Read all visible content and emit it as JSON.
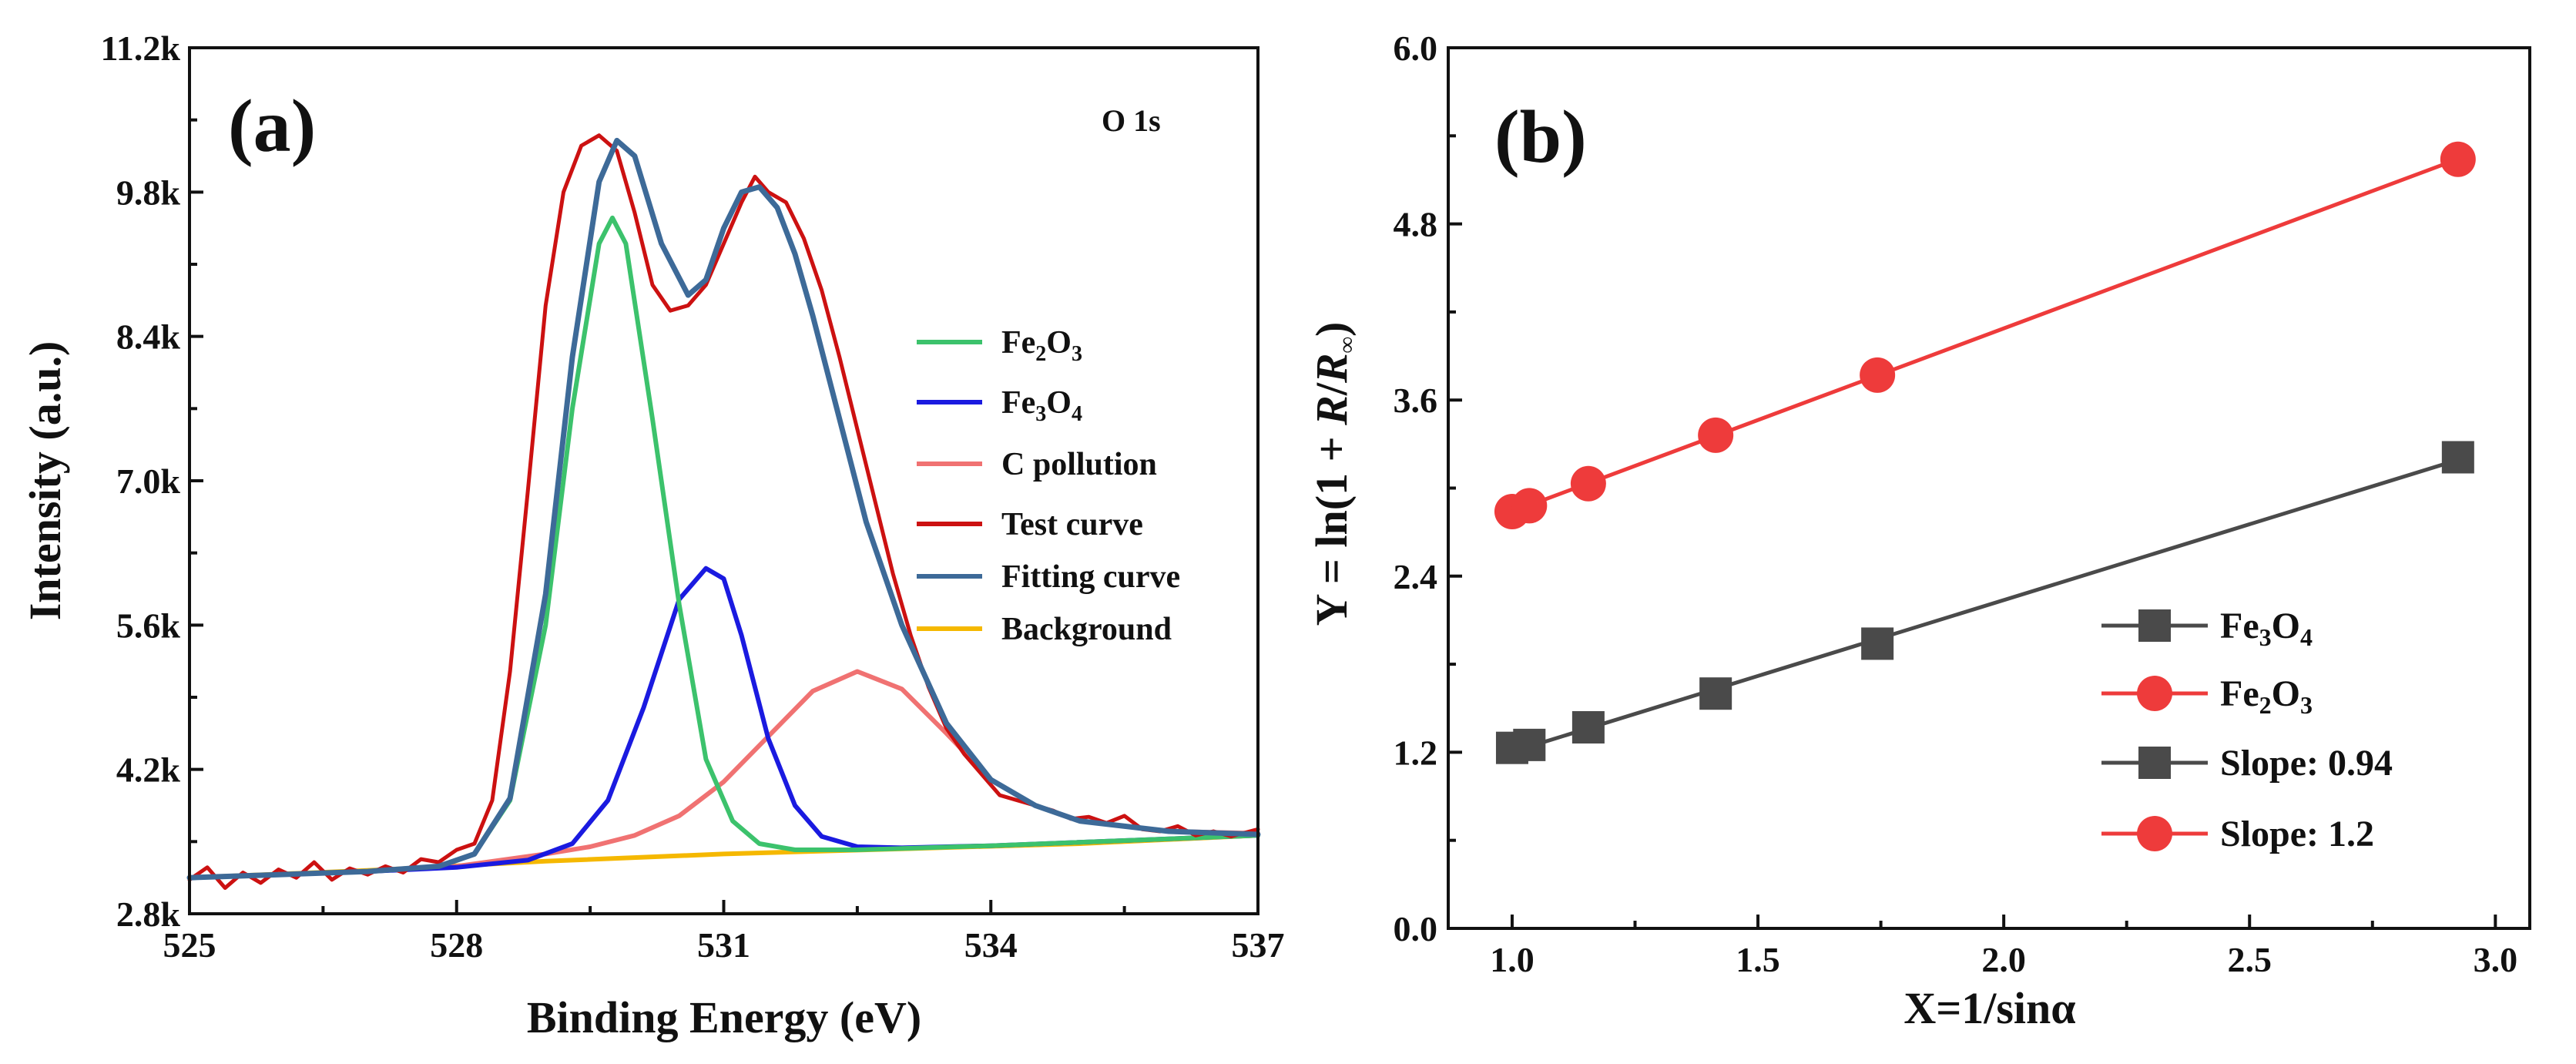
{
  "chart_data": [
    {
      "panel": "(a)",
      "type": "line",
      "title": "",
      "annotation": "O 1s",
      "xlabel": "Binding Energy (eV)",
      "ylabel": "Intensity (a.u.)",
      "xlim": [
        525,
        537
      ],
      "ylim": [
        2800,
        11200
      ],
      "xticks": [
        525,
        528,
        531,
        534,
        537
      ],
      "xtick_labels": [
        "525",
        "528",
        "531",
        "534",
        "537"
      ],
      "yticks": [
        2800,
        4200,
        5600,
        7000,
        8400,
        9800,
        11200
      ],
      "ytick_labels": [
        "2.8k",
        "4.2k",
        "5.6k",
        "7.0k",
        "8.4k",
        "9.8k",
        "11.2k"
      ],
      "legend_position": "center-right",
      "series": [
        {
          "name": "Fe2O3",
          "label_base": "Fe",
          "label_sub1": "2",
          "label_mid": "O",
          "label_sub2": "3",
          "color": "#3cc26c",
          "x": [
            525.0,
            526.0,
            527.0,
            527.8,
            528.2,
            528.6,
            529.0,
            529.3,
            529.6,
            529.75,
            529.9,
            530.2,
            530.5,
            530.8,
            531.1,
            531.4,
            531.8,
            532.5,
            534.0,
            537.0
          ],
          "y": [
            3150,
            3180,
            3210,
            3260,
            3380,
            3900,
            5600,
            7700,
            9300,
            9550,
            9300,
            7600,
            5800,
            4300,
            3700,
            3480,
            3420,
            3420,
            3460,
            3560
          ]
        },
        {
          "name": "Fe3O4",
          "label_base": "Fe",
          "label_sub1": "3",
          "label_mid": "O",
          "label_sub2": "4",
          "color": "#1a1ae0",
          "x": [
            525.0,
            526.0,
            527.0,
            528.0,
            528.8,
            529.3,
            529.7,
            530.1,
            530.5,
            530.8,
            531.0,
            531.2,
            531.5,
            531.8,
            532.1,
            532.5,
            533.0,
            534.0,
            537.0
          ],
          "y": [
            3150,
            3180,
            3210,
            3250,
            3320,
            3480,
            3900,
            4800,
            5850,
            6150,
            6050,
            5500,
            4500,
            3850,
            3550,
            3450,
            3440,
            3460,
            3560
          ]
        },
        {
          "name": "C pollution",
          "color": "#f07272",
          "x": [
            525.0,
            526.0,
            527.0,
            528.0,
            529.0,
            529.5,
            530.0,
            530.5,
            531.0,
            531.5,
            532.0,
            532.5,
            533.0,
            533.5,
            534.0,
            534.5,
            535.0,
            536.0,
            537.0
          ],
          "y": [
            3150,
            3180,
            3210,
            3260,
            3380,
            3450,
            3560,
            3750,
            4080,
            4520,
            4960,
            5150,
            4980,
            4550,
            4100,
            3850,
            3700,
            3600,
            3580
          ]
        },
        {
          "name": "Test curve",
          "color": "#cc1111",
          "x": [
            525.0,
            525.2,
            525.4,
            525.6,
            525.8,
            526.0,
            526.2,
            526.4,
            526.6,
            526.8,
            527.0,
            527.2,
            527.4,
            527.6,
            527.8,
            528.0,
            528.2,
            528.4,
            528.6,
            528.8,
            529.0,
            529.2,
            529.4,
            529.6,
            529.8,
            530.0,
            530.2,
            530.4,
            530.6,
            530.8,
            531.0,
            531.2,
            531.35,
            531.5,
            531.7,
            531.9,
            532.1,
            532.3,
            532.5,
            532.7,
            532.9,
            533.1,
            533.3,
            533.5,
            533.7,
            533.9,
            534.1,
            534.3,
            534.5,
            534.7,
            534.9,
            535.1,
            535.3,
            535.5,
            535.7,
            535.9,
            536.1,
            536.3,
            536.5,
            536.7,
            537.0
          ],
          "y": [
            3130,
            3250,
            3050,
            3200,
            3100,
            3230,
            3150,
            3300,
            3130,
            3240,
            3180,
            3260,
            3200,
            3330,
            3300,
            3420,
            3480,
            3900,
            5150,
            6900,
            8700,
            9800,
            10250,
            10350,
            10200,
            9600,
            8900,
            8650,
            8700,
            8900,
            9300,
            9700,
            9950,
            9800,
            9700,
            9350,
            8850,
            8200,
            7500,
            6800,
            6100,
            5500,
            5000,
            4600,
            4350,
            4150,
            3950,
            3900,
            3850,
            3800,
            3720,
            3740,
            3680,
            3750,
            3620,
            3600,
            3650,
            3560,
            3600,
            3550,
            3620
          ]
        },
        {
          "name": "Fitting curve",
          "color": "#3d6a98",
          "x": [
            525.0,
            526.0,
            527.0,
            527.8,
            528.2,
            528.6,
            529.0,
            529.3,
            529.6,
            529.8,
            530.0,
            530.3,
            530.6,
            530.8,
            531.0,
            531.2,
            531.4,
            531.6,
            531.8,
            532.0,
            532.3,
            532.6,
            533.0,
            533.5,
            534.0,
            534.5,
            535.0,
            536.0,
            537.0
          ],
          "y": [
            3150,
            3180,
            3210,
            3260,
            3380,
            3920,
            5900,
            8200,
            9900,
            10300,
            10150,
            9300,
            8800,
            8950,
            9450,
            9800,
            9850,
            9650,
            9200,
            8600,
            7600,
            6600,
            5600,
            4650,
            4100,
            3850,
            3700,
            3600,
            3570
          ]
        },
        {
          "name": "Background",
          "color": "#f5b800",
          "x": [
            525.0,
            527.0,
            529.0,
            531.0,
            533.0,
            535.0,
            537.0
          ],
          "y": [
            3150,
            3220,
            3310,
            3380,
            3430,
            3480,
            3560
          ]
        }
      ]
    },
    {
      "panel": "(b)",
      "type": "scatter",
      "title": "",
      "xlabel": "X=1/sinα",
      "ylabel_prefix": "Y = ln(1 + ",
      "ylabel_r": "R",
      "ylabel_slash": "/",
      "ylabel_rinf": "R",
      "ylabel_sub": "∞",
      "ylabel_suffix": ")",
      "xlim": [
        0.87,
        3.07
      ],
      "ylim": [
        0.0,
        6.0
      ],
      "xticks": [
        1.0,
        1.5,
        2.0,
        2.5,
        3.0
      ],
      "xtick_labels": [
        "1.0",
        "1.5",
        "2.0",
        "2.5",
        "3.0"
      ],
      "yticks": [
        0.0,
        1.2,
        2.4,
        3.6,
        4.8,
        6.0
      ],
      "ytick_labels": [
        "0.0",
        "1.2",
        "2.4",
        "3.6",
        "4.8",
        "6.0"
      ],
      "legend_position": "bottom-right",
      "legend": [
        {
          "label": "Fe3O4",
          "base": "Fe",
          "sub1": "3",
          "mid": "O",
          "sub2": "4",
          "marker": "square",
          "color": "#4a4a4a"
        },
        {
          "label": "Fe2O3",
          "base": "Fe",
          "sub1": "2",
          "mid": "O",
          "sub2": "3",
          "marker": "circle",
          "color": "#ee3b3b"
        },
        {
          "label": "Slope: 0.94",
          "marker": "square",
          "color": "#4a4a4a"
        },
        {
          "label": "Slope: 1.2",
          "marker": "circle",
          "color": "#ee3b3b"
        }
      ],
      "series": [
        {
          "name": "Fe3O4",
          "marker": "square",
          "color": "#4a4a4a",
          "slope": 0.94,
          "x": [
            1.0,
            1.035,
            1.155,
            1.414,
            1.743,
            2.924
          ],
          "y": [
            1.23,
            1.25,
            1.37,
            1.6,
            1.94,
            3.21
          ]
        },
        {
          "name": "Fe2O3",
          "marker": "circle",
          "color": "#ee3b3b",
          "slope": 1.2,
          "x": [
            1.0,
            1.035,
            1.155,
            1.414,
            1.743,
            2.924
          ],
          "y": [
            2.84,
            2.88,
            3.03,
            3.36,
            3.77,
            5.24
          ]
        }
      ]
    }
  ]
}
